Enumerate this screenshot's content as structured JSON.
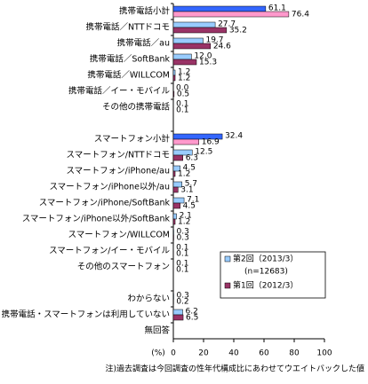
{
  "chart_data": {
    "type": "bar",
    "orientation": "horizontal",
    "categories": [
      "携帯電話小計",
      "携帯電話／NTTドコモ",
      "携帯電話／au",
      "携帯電話／SoftBank",
      "携帯電話／WILLCOM",
      "携帯電話／イー・モバイル",
      "その他の携帯電話",
      null,
      "スマートフォン小計",
      "スマートフォン/NTTドコモ",
      "スマートフォン/iPhone/au",
      "スマートフォン/iPhone以外/au",
      "スマートフォン/iPhone/SoftBank",
      "スマートフォン/iPhone以外/SoftBank",
      "スマートフォン/WILLCOM",
      "スマートフォン/イー・モバイル",
      "その他のスマートフォン",
      null,
      "わからない",
      "携帯電話・スマートフォンは利用していない",
      "無回答"
    ],
    "series": [
      {
        "name": "第2回（2013/3）",
        "legend_note": "(n=12683)",
        "color": "#99ccff",
        "bar_colors": [
          "#3366ff",
          "#99ccff",
          "#99ccff",
          "#99ccff",
          "#99ccff",
          "#99ccff",
          "#99ccff",
          null,
          "#3366ff",
          "#99ccff",
          "#99ccff",
          "#99ccff",
          "#99ccff",
          "#99ccff",
          "#99ccff",
          "#99ccff",
          "#99ccff",
          null,
          "#99ccff",
          "#99ccff",
          null
        ],
        "values": [
          61.1,
          27.7,
          19.7,
          12.0,
          1.2,
          0.0,
          0.1,
          null,
          32.4,
          12.5,
          4.5,
          5.7,
          7.1,
          2.1,
          0.3,
          0.1,
          0.1,
          null,
          0.3,
          6.2,
          null
        ],
        "value_labels": [
          "61.1",
          "27.7",
          "19.7",
          "12.0",
          "1.2",
          "0.0",
          "0.1",
          null,
          "32.4",
          "12.5",
          "4.5",
          "5.7",
          "7.1",
          "2.1",
          "0.3",
          "0.1",
          "0.1",
          null,
          "0.3",
          "6.2",
          null
        ]
      },
      {
        "name": "第1回（2012/3）",
        "color": "#993366",
        "bar_colors": [
          "#ff99cc",
          "#993366",
          "#993366",
          "#993366",
          "#993366",
          "#993366",
          "#993366",
          null,
          "#ff99cc",
          "#993366",
          "#993366",
          "#993366",
          "#993366",
          "#993366",
          "#993366",
          "#993366",
          "#993366",
          null,
          "#993366",
          "#993366",
          null
        ],
        "values": [
          76.4,
          35.2,
          24.6,
          15.3,
          1.2,
          0.5,
          0.1,
          null,
          16.9,
          6.3,
          1.2,
          3.1,
          4.5,
          1.2,
          0.3,
          0.1,
          0.1,
          null,
          0.2,
          6.5,
          null
        ],
        "value_labels": [
          "76.4",
          "35.2",
          "24.6",
          "15.3",
          "1.2",
          "0.5",
          "0.1",
          null,
          "16.9",
          "6.3",
          "1.2",
          "3.1",
          "4.5",
          "1.2",
          "0.3",
          "0.1",
          "0.1",
          null,
          "0.2",
          "6.5",
          null
        ]
      }
    ],
    "xlim": [
      0,
      100
    ],
    "xticks": [
      0,
      20,
      40,
      60,
      80,
      100
    ],
    "x_label": "(%)",
    "footnote": "注)過去調査は今回調査の性年代構成比にあわせてウエイトバックした値"
  }
}
